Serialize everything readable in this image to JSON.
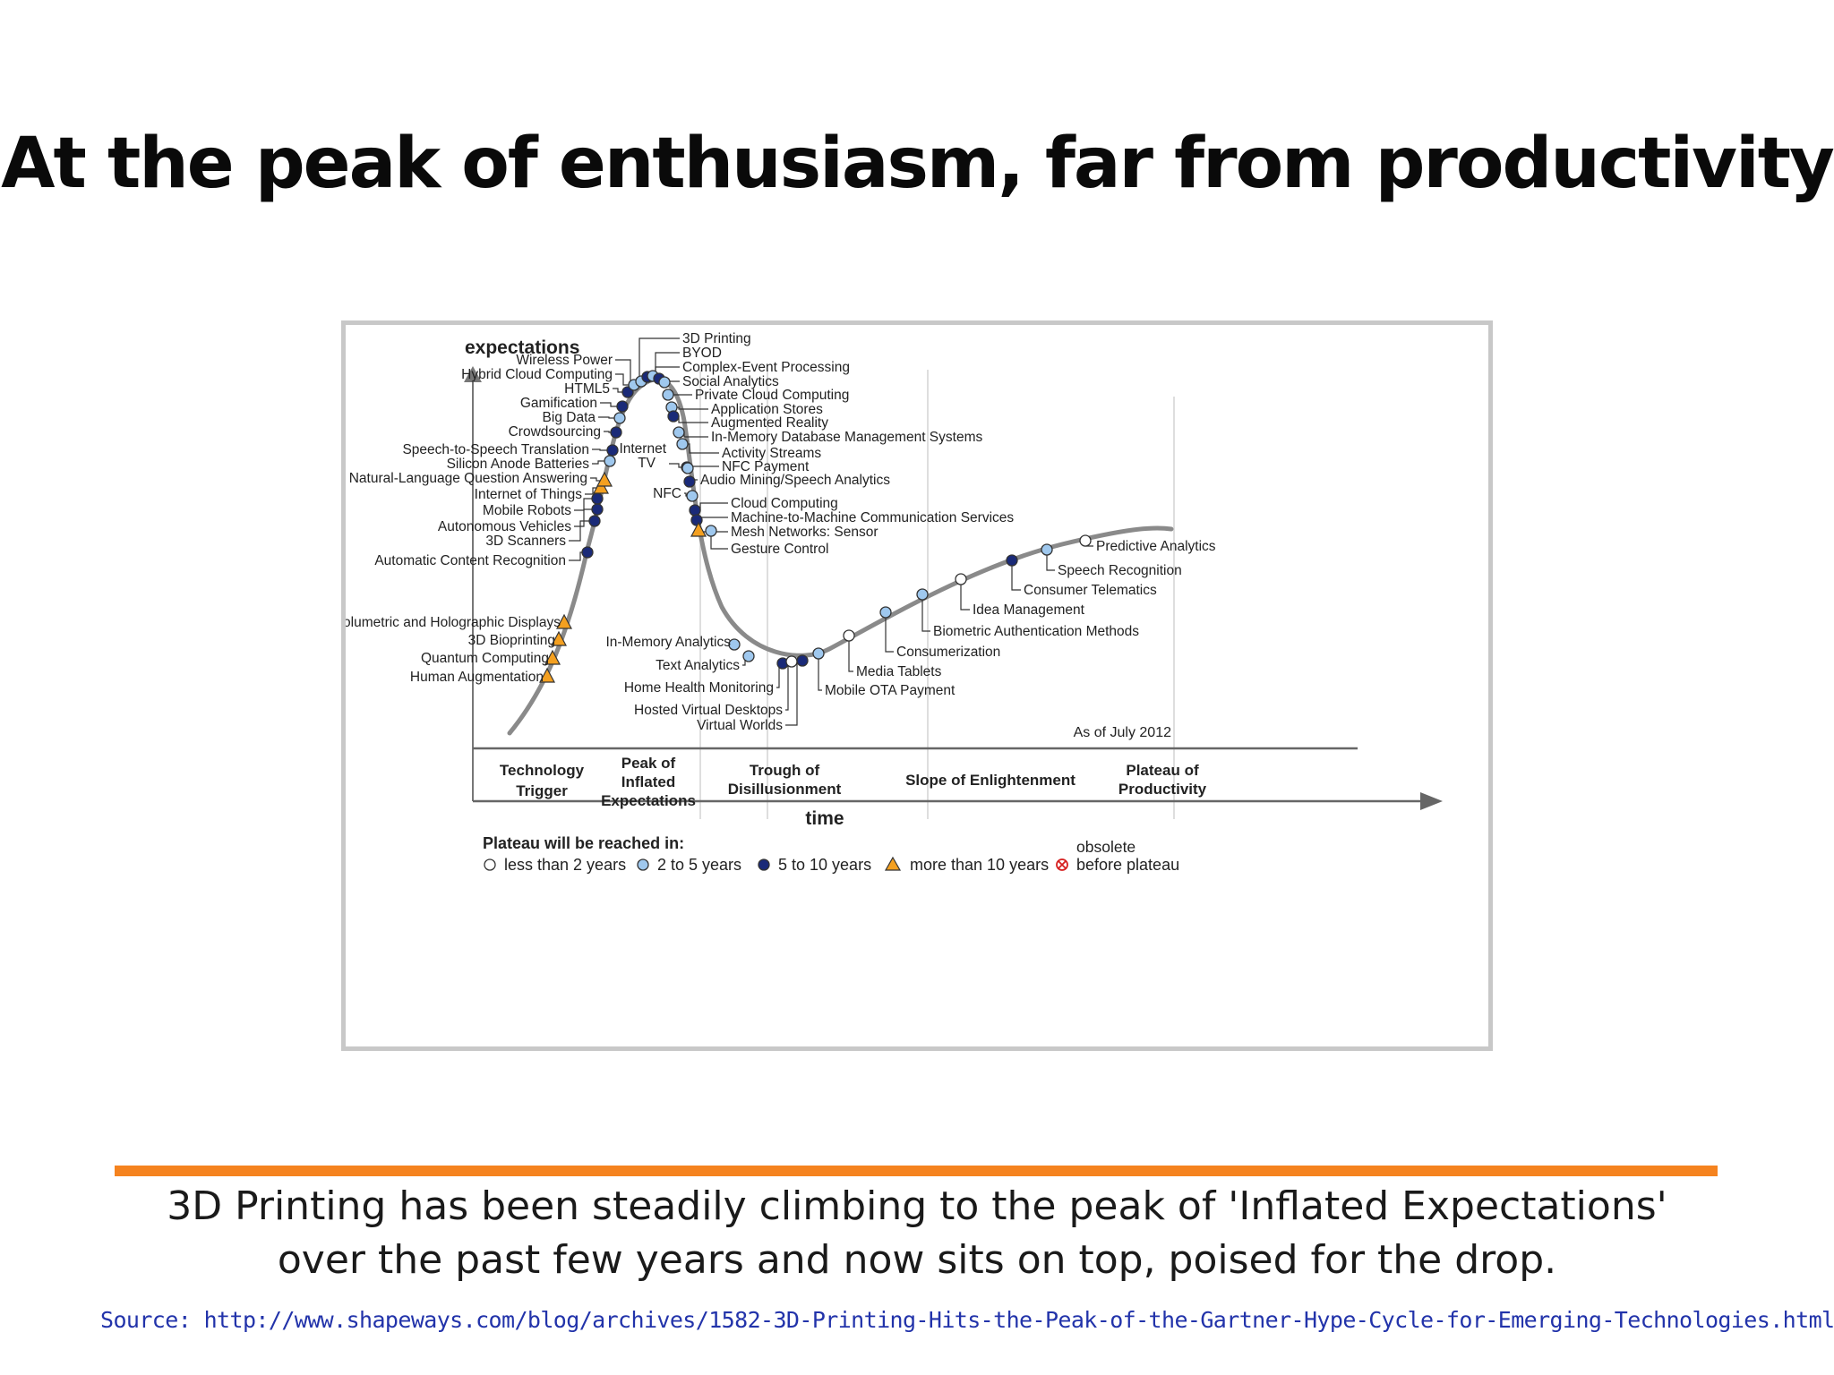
{
  "slide": {
    "title": "At the peak of enthusiasm, far from productivity",
    "caption_line1": "3D Printing has been steadily climbing to the peak of 'Inflated Expectations'",
    "caption_line2": "over the past few years and now sits on top, poised for the drop.",
    "source": "Source: http://www.shapeways.com/blog/archives/1582-3D-Printing-Hits-the-Peak-of-the-Gartner-Hype-Cycle-for-Emerging-Technologies.html",
    "accent_color": "#f5831f",
    "source_color": "#2233aa"
  },
  "chart_data": {
    "type": "line",
    "ylabel": "expectations",
    "xlabel": "time",
    "as_of": "As of July 2012",
    "phases": [
      "Technology Trigger",
      "Peak of Inflated Expectations",
      "Trough of Disillusionment",
      "Slope of Enlightenment",
      "Plateau of Productivity"
    ],
    "legend_title": "Plateau will be reached in:",
    "legend": [
      {
        "key": "lt2",
        "label": "less than 2 years",
        "marker": "white-circle"
      },
      {
        "key": "2to5",
        "label": "2 to 5 years",
        "marker": "light-blue-circle"
      },
      {
        "key": "5to10",
        "label": "5 to 10 years",
        "marker": "dark-blue-circle"
      },
      {
        "key": "gt10",
        "label": "more than 10 years",
        "marker": "orange-triangle"
      },
      {
        "key": "obsolete",
        "label_top": "obsolete",
        "label": "before plateau",
        "marker": "red-crossed-circle"
      }
    ],
    "colors": {
      "lt2": "#ffffff",
      "2to5": "#9fc8ee",
      "5to10": "#1a2a78",
      "gt10": "#f4a020",
      "obsolete": "#d62020",
      "curve": "#8a8a8a"
    },
    "technologies": [
      {
        "name": "Human Augmentation",
        "cat": "gt10"
      },
      {
        "name": "Quantum Computing",
        "cat": "gt10"
      },
      {
        "name": "3D Bioprinting",
        "cat": "gt10"
      },
      {
        "name": "Volumetric and Holographic Displays",
        "cat": "gt10"
      },
      {
        "name": "Automatic Content Recognition",
        "cat": "5to10"
      },
      {
        "name": "3D Scanners",
        "cat": "5to10"
      },
      {
        "name": "Autonomous Vehicles",
        "cat": "5to10"
      },
      {
        "name": "Mobile Robots",
        "cat": "5to10"
      },
      {
        "name": "Internet of Things",
        "cat": "gt10"
      },
      {
        "name": "Natural-Language Question Answering",
        "cat": "gt10"
      },
      {
        "name": "Silicon Anode Batteries",
        "cat": "2to5"
      },
      {
        "name": "Speech-to-Speech Translation",
        "cat": "5to10"
      },
      {
        "name": "Crowdsourcing",
        "cat": "5to10"
      },
      {
        "name": "Big Data",
        "cat": "2to5"
      },
      {
        "name": "Gamification",
        "cat": "5to10"
      },
      {
        "name": "HTML5",
        "cat": "5to10"
      },
      {
        "name": "Hybrid Cloud Computing",
        "cat": "2to5"
      },
      {
        "name": "Wireless Power",
        "cat": "2to5"
      },
      {
        "name": "3D Printing",
        "cat": "5to10"
      },
      {
        "name": "BYOD",
        "cat": "2to5"
      },
      {
        "name": "Complex-Event Processing",
        "cat": "5to10"
      },
      {
        "name": "Social Analytics",
        "cat": "2to5"
      },
      {
        "name": "Private Cloud Computing",
        "cat": "2to5"
      },
      {
        "name": "Application Stores",
        "cat": "2to5"
      },
      {
        "name": "Augmented Reality",
        "cat": "5to10"
      },
      {
        "name": "In-Memory Database Management Systems",
        "cat": "2to5"
      },
      {
        "name": "Activity Streams",
        "cat": "2to5"
      },
      {
        "name": "Internet TV",
        "cat": "5to10"
      },
      {
        "name": "NFC Payment",
        "cat": "2to5"
      },
      {
        "name": "Audio Mining/Speech Analytics",
        "cat": "5to10"
      },
      {
        "name": "NFC",
        "cat": "2to5"
      },
      {
        "name": "Cloud Computing",
        "cat": "5to10"
      },
      {
        "name": "Machine-to-Machine Communication Services",
        "cat": "5to10"
      },
      {
        "name": "Mesh Networks: Sensor",
        "cat": "gt10"
      },
      {
        "name": "Gesture Control",
        "cat": "2to5"
      },
      {
        "name": "In-Memory Analytics",
        "cat": "2to5"
      },
      {
        "name": "Text Analytics",
        "cat": "2to5"
      },
      {
        "name": "Home Health Monitoring",
        "cat": "5to10"
      },
      {
        "name": "Hosted Virtual Desktops",
        "cat": "lt2"
      },
      {
        "name": "Virtual Worlds",
        "cat": "5to10"
      },
      {
        "name": "Mobile OTA Payment",
        "cat": "2to5"
      },
      {
        "name": "Media Tablets",
        "cat": "lt2"
      },
      {
        "name": "Consumerization",
        "cat": "2to5"
      },
      {
        "name": "Biometric Authentication Methods",
        "cat": "2to5"
      },
      {
        "name": "Idea Management",
        "cat": "lt2"
      },
      {
        "name": "Consumer Telematics",
        "cat": "5to10"
      },
      {
        "name": "Speech Recognition",
        "cat": "2to5"
      },
      {
        "name": "Predictive Analytics",
        "cat": "lt2"
      }
    ]
  }
}
